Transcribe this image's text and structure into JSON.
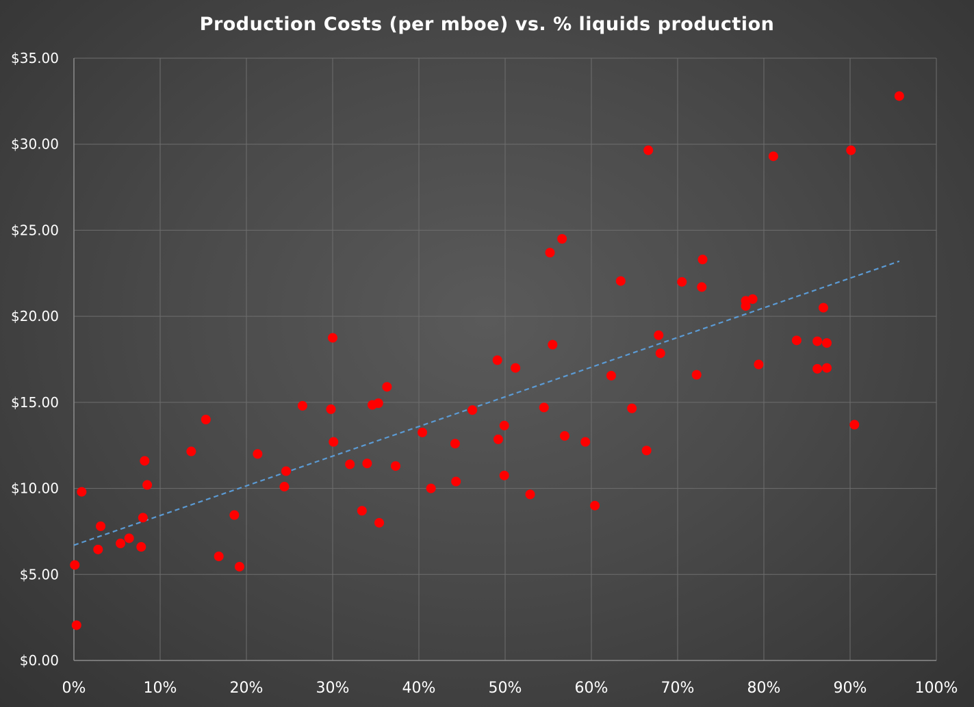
{
  "chart_data": {
    "type": "scatter",
    "title": "Production Costs (per mboe) vs. % liquids production",
    "xlabel": "",
    "ylabel": "",
    "xlim": [
      0,
      1
    ],
    "ylim": [
      0,
      35
    ],
    "x_ticks": [
      0,
      0.1,
      0.2,
      0.3,
      0.4,
      0.5,
      0.6,
      0.7,
      0.8,
      0.9,
      1.0
    ],
    "x_tick_labels": [
      "0%",
      "10%",
      "20%",
      "30%",
      "40%",
      "50%",
      "60%",
      "70%",
      "80%",
      "90%",
      "100%"
    ],
    "y_ticks": [
      0,
      5,
      10,
      15,
      20,
      25,
      30,
      35
    ],
    "y_tick_labels": [
      "$0.00",
      "$5.00",
      "$10.00",
      "$15.00",
      "$20.00",
      "$25.00",
      "$30.00",
      "$35.00"
    ],
    "grid": true,
    "legend": "none",
    "colors": {
      "point": "#ff0000",
      "trendline": "#5b9bd5",
      "grid": "#6e6e6e",
      "axis": "#8c8c8c",
      "text": "#ffffff"
    },
    "trendline": {
      "type": "linear",
      "x": [
        0.0,
        0.957
      ],
      "y": [
        6.7,
        23.2
      ],
      "style": "dashed"
    },
    "points": [
      {
        "x": 0.003,
        "y": 2.05
      },
      {
        "x": 0.001,
        "y": 5.55
      },
      {
        "x": 0.009,
        "y": 9.8
      },
      {
        "x": 0.028,
        "y": 6.45
      },
      {
        "x": 0.031,
        "y": 7.8
      },
      {
        "x": 0.054,
        "y": 6.8
      },
      {
        "x": 0.064,
        "y": 7.1
      },
      {
        "x": 0.078,
        "y": 6.6
      },
      {
        "x": 0.08,
        "y": 8.3
      },
      {
        "x": 0.082,
        "y": 11.6
      },
      {
        "x": 0.085,
        "y": 10.2
      },
      {
        "x": 0.136,
        "y": 12.15
      },
      {
        "x": 0.153,
        "y": 14.0
      },
      {
        "x": 0.168,
        "y": 6.05
      },
      {
        "x": 0.186,
        "y": 8.45
      },
      {
        "x": 0.192,
        "y": 5.45
      },
      {
        "x": 0.213,
        "y": 12.0
      },
      {
        "x": 0.244,
        "y": 10.1
      },
      {
        "x": 0.246,
        "y": 11.0
      },
      {
        "x": 0.265,
        "y": 14.8
      },
      {
        "x": 0.298,
        "y": 14.6
      },
      {
        "x": 0.3,
        "y": 18.75
      },
      {
        "x": 0.301,
        "y": 12.7
      },
      {
        "x": 0.32,
        "y": 11.4
      },
      {
        "x": 0.334,
        "y": 8.7
      },
      {
        "x": 0.34,
        "y": 11.45
      },
      {
        "x": 0.346,
        "y": 14.85
      },
      {
        "x": 0.353,
        "y": 14.95
      },
      {
        "x": 0.354,
        "y": 8.0
      },
      {
        "x": 0.363,
        "y": 15.9
      },
      {
        "x": 0.373,
        "y": 11.3
      },
      {
        "x": 0.404,
        "y": 13.25
      },
      {
        "x": 0.414,
        "y": 10.0
      },
      {
        "x": 0.442,
        "y": 12.6
      },
      {
        "x": 0.443,
        "y": 10.4
      },
      {
        "x": 0.462,
        "y": 14.55
      },
      {
        "x": 0.491,
        "y": 17.45
      },
      {
        "x": 0.492,
        "y": 12.85
      },
      {
        "x": 0.499,
        "y": 13.65
      },
      {
        "x": 0.499,
        "y": 10.75
      },
      {
        "x": 0.512,
        "y": 17.0
      },
      {
        "x": 0.529,
        "y": 9.65
      },
      {
        "x": 0.545,
        "y": 14.7
      },
      {
        "x": 0.552,
        "y": 23.7
      },
      {
        "x": 0.555,
        "y": 18.35
      },
      {
        "x": 0.566,
        "y": 24.5
      },
      {
        "x": 0.569,
        "y": 13.05
      },
      {
        "x": 0.593,
        "y": 12.7
      },
      {
        "x": 0.604,
        "y": 9.0
      },
      {
        "x": 0.623,
        "y": 16.55
      },
      {
        "x": 0.634,
        "y": 22.05
      },
      {
        "x": 0.647,
        "y": 14.65
      },
      {
        "x": 0.664,
        "y": 12.2
      },
      {
        "x": 0.666,
        "y": 29.65
      },
      {
        "x": 0.678,
        "y": 18.9
      },
      {
        "x": 0.68,
        "y": 17.85
      },
      {
        "x": 0.705,
        "y": 22.0
      },
      {
        "x": 0.722,
        "y": 16.6
      },
      {
        "x": 0.728,
        "y": 21.7
      },
      {
        "x": 0.729,
        "y": 23.3
      },
      {
        "x": 0.779,
        "y": 20.9
      },
      {
        "x": 0.779,
        "y": 20.6
      },
      {
        "x": 0.787,
        "y": 21.0
      },
      {
        "x": 0.794,
        "y": 17.2
      },
      {
        "x": 0.811,
        "y": 29.3
      },
      {
        "x": 0.838,
        "y": 18.6
      },
      {
        "x": 0.862,
        "y": 18.55
      },
      {
        "x": 0.862,
        "y": 16.95
      },
      {
        "x": 0.869,
        "y": 20.5
      },
      {
        "x": 0.873,
        "y": 18.45
      },
      {
        "x": 0.873,
        "y": 17.0
      },
      {
        "x": 0.901,
        "y": 29.65
      },
      {
        "x": 0.905,
        "y": 13.7
      },
      {
        "x": 0.957,
        "y": 32.8
      }
    ]
  }
}
